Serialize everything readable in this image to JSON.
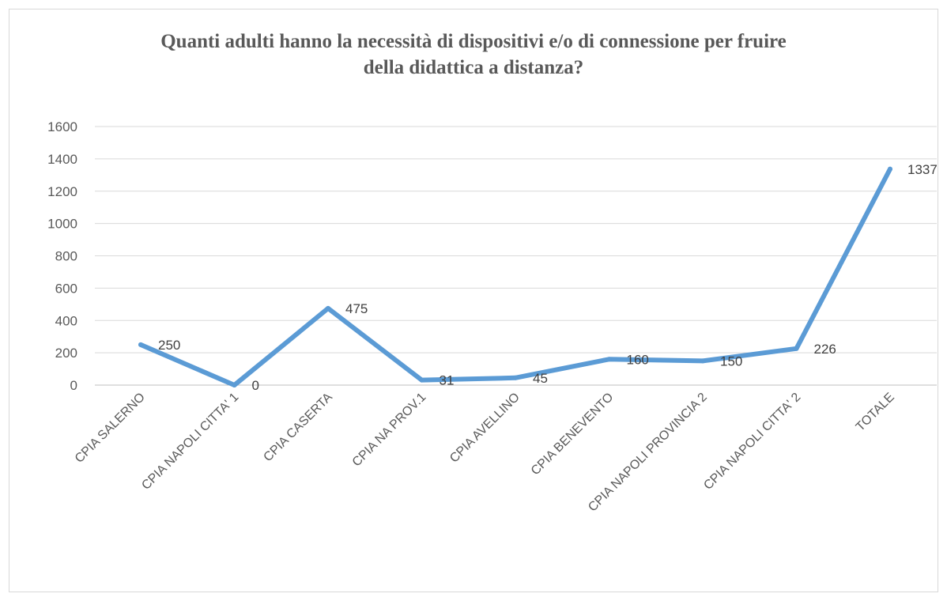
{
  "chart_data": {
    "type": "line",
    "title_lines": [
      "Quanti adulti hanno la necessità di dispositivi e/o di connessione per fruire",
      "della didattica a distanza?"
    ],
    "categories": [
      "CPIA SALERNO",
      "CPIA NAPOLI CITTA' 1",
      "CPIA CASERTA",
      "CPIA NA PROV.1",
      "CPIA AVELLINO",
      "CPIA BENEVENTO",
      "CPIA NAPOLI PROVINCIA 2",
      "CPIA NAPOLI CITTA' 2",
      "TOTALE"
    ],
    "series": [
      {
        "values": [
          250,
          0,
          475,
          31,
          45,
          160,
          150,
          226,
          1337
        ]
      }
    ],
    "data_labels": [
      "250",
      "0",
      "475",
      "31",
      "45",
      "160",
      "150",
      "226",
      "1337"
    ],
    "y_ticks": [
      "0",
      "200",
      "400",
      "600",
      "800",
      "1000",
      "1200",
      "1400",
      "1600"
    ],
    "ylim": [
      0,
      1600
    ],
    "grid": "horizontal",
    "legend": "none",
    "colors": {
      "line": "#5b9bd5",
      "grid": "#d9d9d9",
      "axis": "#bfbfbf",
      "text": "#595959"
    }
  }
}
